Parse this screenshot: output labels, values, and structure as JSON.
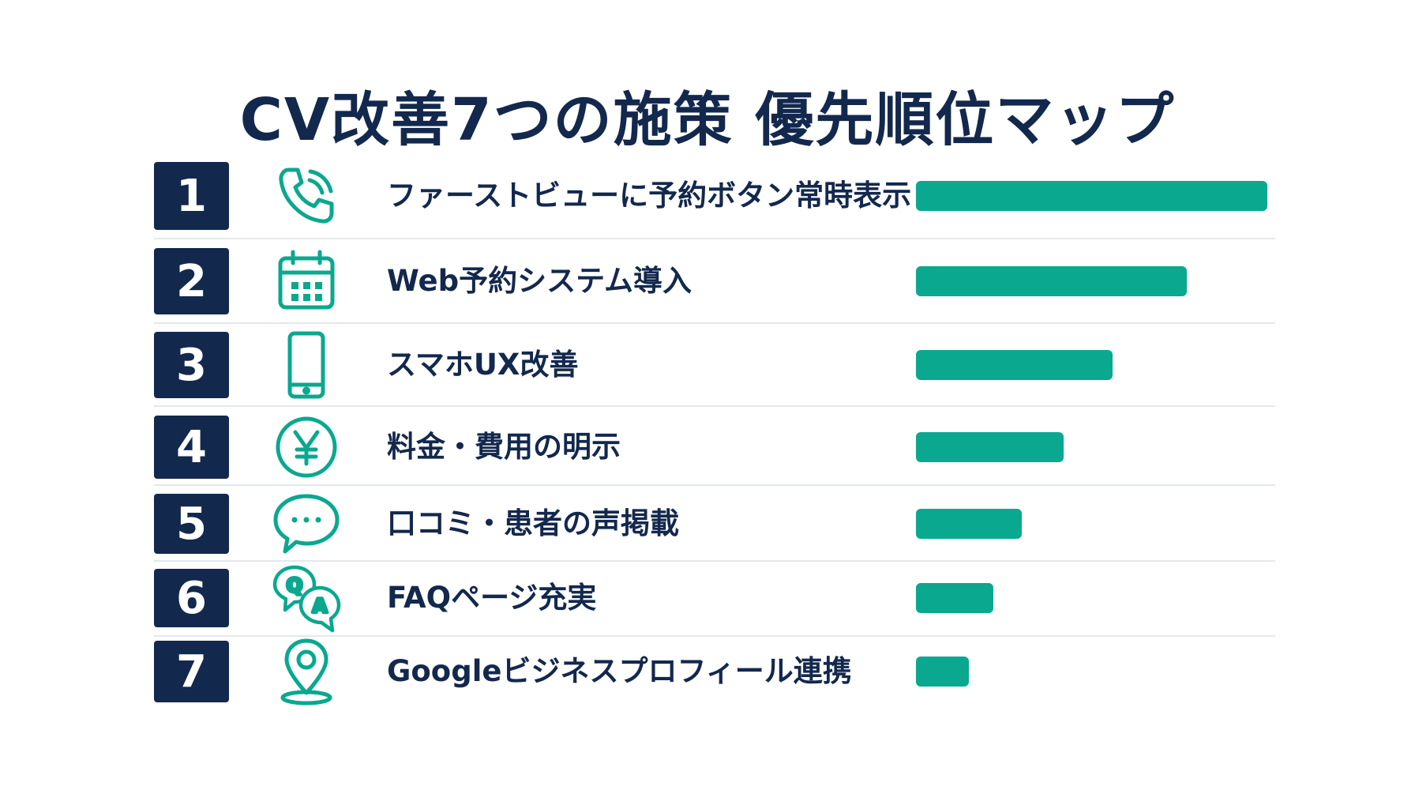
{
  "title": "CV改善7つの施策 優先順位マップ",
  "colors": {
    "navy": "#13284d",
    "teal": "#0aa88f",
    "divider": "#e4e7ec"
  },
  "chart_data": {
    "type": "bar",
    "orientation": "horizontal",
    "grid": false,
    "categories": [
      "ファーストビューに予約ボタン常時表示",
      "Web予約システム導入",
      "スマホUX改善",
      "料金・費用の明示",
      "口コミ・患者の声掲載",
      "FAQページ充実",
      "Googleビジネスプロフィール連携"
    ],
    "values": [
      100,
      77,
      56,
      42,
      30,
      22,
      15
    ]
  },
  "items": [
    {
      "rank": "1",
      "label": "ファーストビューに予約ボタン常時表示",
      "icon": "phone-icon"
    },
    {
      "rank": "2",
      "label": "Web予約システム導入",
      "icon": "calendar-icon"
    },
    {
      "rank": "3",
      "label": "スマホUX改善",
      "icon": "smartphone-icon"
    },
    {
      "rank": "4",
      "label": "料金・費用の明示",
      "icon": "yen-coin-icon"
    },
    {
      "rank": "5",
      "label": "口コミ・患者の声掲載",
      "icon": "speech-bubble-icon"
    },
    {
      "rank": "6",
      "label": "FAQページ充実",
      "icon": "qa-bubbles-icon",
      "icon_text": [
        "Q",
        "A"
      ]
    },
    {
      "rank": "7",
      "label": "Googleビジネスプロフィール連携",
      "icon": "map-pin-icon"
    }
  ]
}
